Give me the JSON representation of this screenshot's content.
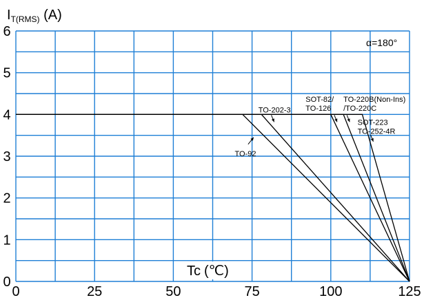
{
  "chart_data": {
    "type": "line",
    "ylabel_main": "I",
    "ylabel_sub": "T(RMS)",
    "ylabel_unit": " (A)",
    "xlabel_main": "Tc",
    "xlabel_unit": "(℃)",
    "xlim": [
      0,
      125
    ],
    "ylim": [
      0,
      6
    ],
    "xticks": [
      0,
      25,
      50,
      75,
      100,
      125
    ],
    "yticks": [
      0,
      1,
      2,
      3,
      4,
      5,
      6
    ],
    "grid": true,
    "condition": "α=180°",
    "series": [
      {
        "name": "TO-92",
        "x": [
          0,
          72,
          125
        ],
        "y": [
          4,
          4,
          0
        ]
      },
      {
        "name": "TO-202-3",
        "x": [
          0,
          78,
          125
        ],
        "y": [
          4,
          4,
          0
        ]
      },
      {
        "name": "SOT-82/ TO-126",
        "x": [
          0,
          100,
          125
        ],
        "y": [
          4,
          4,
          0
        ]
      },
      {
        "name": "TO-220B(Non-Ins) /TO-220C",
        "x": [
          0,
          104,
          125
        ],
        "y": [
          4,
          4,
          0
        ]
      },
      {
        "name": "SOT-223 TO-252-4R",
        "x": [
          0,
          110,
          125
        ],
        "y": [
          4,
          4,
          0
        ]
      }
    ],
    "annotations": [
      {
        "lines": [
          "TO-92"
        ],
        "at": [
          69.5,
          3.0
        ],
        "arrow_to": [
          75.5,
          3.45
        ]
      },
      {
        "lines": [
          "TO-202-3"
        ],
        "at": [
          77.0,
          4.05
        ],
        "arrow_to": [
          82.0,
          3.82
        ]
      },
      {
        "lines": [
          "SOT-82/",
          "TO-126"
        ],
        "at": [
          92.0,
          4.3
        ],
        "arrow_to": [
          102.0,
          3.82
        ]
      },
      {
        "lines": [
          "TO-220B(Non-Ins)",
          "/TO-220C"
        ],
        "at": [
          104.0,
          4.3
        ],
        "arrow_to": [
          106.0,
          3.82
        ]
      },
      {
        "lines": [
          "SOT-223",
          "TO-252-4R"
        ],
        "at": [
          108.5,
          3.75
        ],
        "arrow_to": [
          113.5,
          3.35
        ]
      }
    ]
  }
}
